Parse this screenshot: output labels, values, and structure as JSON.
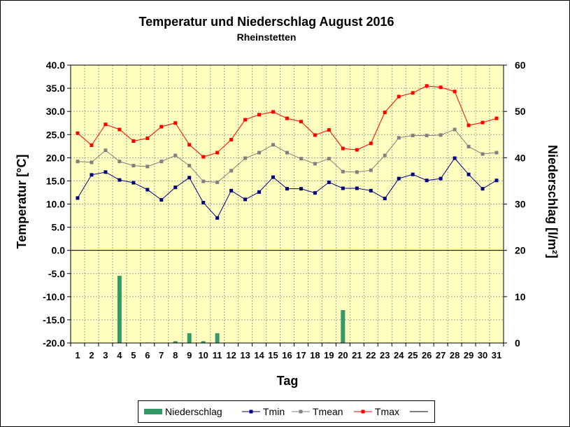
{
  "chart_data": {
    "type": "line",
    "title": "Temperatur und Niederschlag August 2016",
    "subtitle": "Rheinstetten",
    "xlabel": "Tag",
    "ylabel_left": "Temperatur [°C]",
    "ylabel_right": "Niederschlag [l/m²]",
    "ylim_left": [
      -20,
      40
    ],
    "ylim_right": [
      0,
      60
    ],
    "yticks_left": [
      "40.0",
      "35.0",
      "30.0",
      "25.0",
      "20.0",
      "15.0",
      "10.0",
      "5.0",
      "0.0",
      "-5.0",
      "-10.0",
      "-15.0",
      "-20.0"
    ],
    "yticks_right": [
      "60",
      "50",
      "40",
      "30",
      "20",
      "10",
      "0"
    ],
    "categories": [
      "1",
      "2",
      "3",
      "4",
      "5",
      "6",
      "7",
      "8",
      "9",
      "10",
      "11",
      "12",
      "13",
      "14",
      "15",
      "16",
      "17",
      "18",
      "19",
      "20",
      "21",
      "22",
      "23",
      "24",
      "25",
      "26",
      "27",
      "28",
      "29",
      "30",
      "31"
    ],
    "grid": true,
    "legend_position": "bottom",
    "colors": {
      "plot_background": "#ffffc0",
      "grid": "#a0a0a0",
      "Niederschlag": "#339966",
      "Tmin": "#000080",
      "Tmean": "#808080",
      "Tmax": "#ff0000"
    },
    "series": [
      {
        "name": "Niederschlag",
        "type": "bar",
        "axis": "right",
        "values": [
          0,
          0,
          0,
          14.5,
          0,
          0.1,
          0,
          0.4,
          2.1,
          0.4,
          2.1,
          0,
          0,
          0,
          0,
          0,
          0,
          0,
          0.1,
          7.1,
          0,
          0,
          0,
          0,
          0,
          0,
          0,
          0,
          0,
          0,
          0
        ]
      },
      {
        "name": "Tmin",
        "type": "line",
        "axis": "left",
        "values": [
          11.3,
          16.3,
          16.9,
          15.2,
          14.6,
          13.1,
          10.9,
          13.6,
          15.7,
          10.3,
          7.0,
          12.9,
          11.0,
          12.6,
          15.8,
          13.3,
          13.3,
          12.4,
          14.7,
          13.4,
          13.4,
          12.9,
          11.2,
          15.5,
          16.4,
          15.1,
          15.5,
          19.9,
          16.4,
          13.3,
          15.1
        ]
      },
      {
        "name": "Tmean",
        "type": "line",
        "axis": "left",
        "values": [
          19.2,
          19.0,
          21.6,
          19.2,
          18.3,
          18.1,
          19.2,
          20.5,
          18.3,
          14.9,
          14.7,
          17.2,
          19.9,
          21.1,
          22.8,
          21.1,
          19.8,
          18.7,
          19.8,
          17.0,
          16.9,
          17.3,
          20.5,
          24.3,
          24.8,
          24.8,
          24.9,
          26.1,
          22.4,
          20.8,
          21.1
        ]
      },
      {
        "name": "Tmax",
        "type": "line",
        "axis": "left",
        "values": [
          25.3,
          22.7,
          27.2,
          26.1,
          23.6,
          24.2,
          26.7,
          27.5,
          22.8,
          20.2,
          21.1,
          23.9,
          28.2,
          29.3,
          29.9,
          28.5,
          27.8,
          24.9,
          26.0,
          22.0,
          21.7,
          23.1,
          29.8,
          33.2,
          34.0,
          35.5,
          35.2,
          34.3,
          27.0,
          27.6,
          28.5
        ]
      }
    ]
  },
  "legend": {
    "items": [
      "Niederschlag",
      "Tmin",
      "Tmean",
      "Tmax"
    ]
  }
}
